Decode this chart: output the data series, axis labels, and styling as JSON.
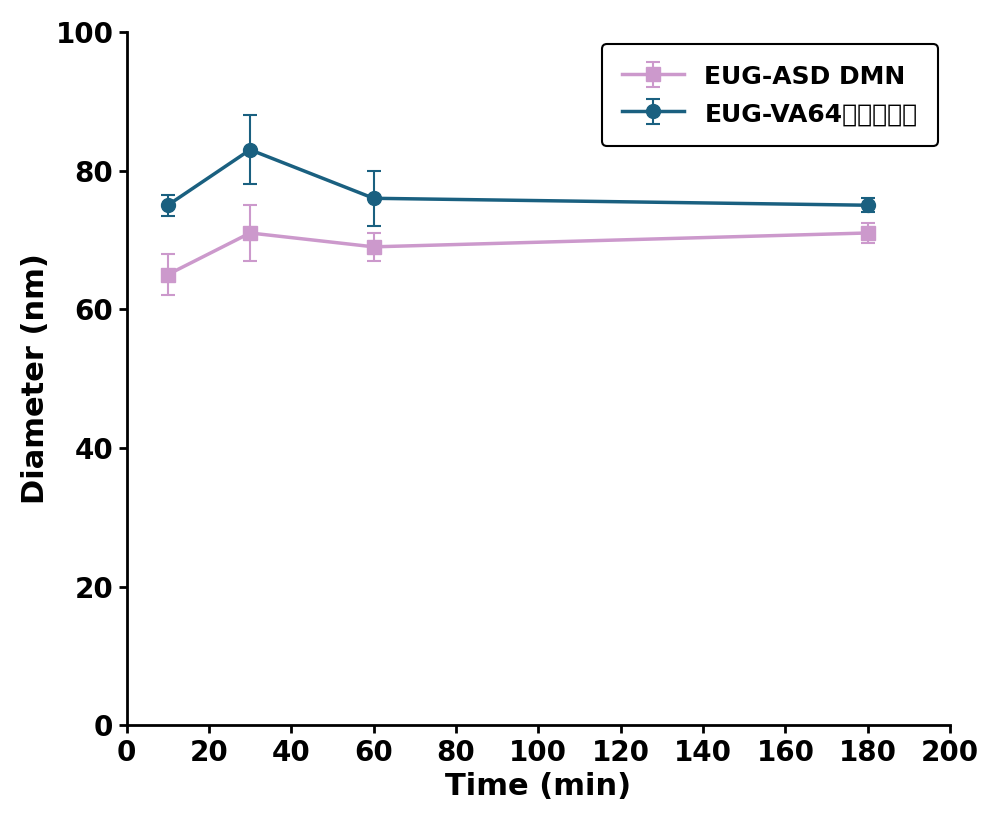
{
  "x": [
    10,
    30,
    60,
    180
  ],
  "series1_y": [
    65,
    71,
    69,
    71
  ],
  "series1_yerr": [
    3,
    4,
    2,
    1.5
  ],
  "series1_label": "EUG-ASD DMN",
  "series1_color": "#cc99cc",
  "series1_marker": "s",
  "series2_y": [
    75,
    83,
    76,
    75
  ],
  "series2_yerr": [
    1.5,
    5,
    4,
    1
  ],
  "series2_label": "EUG-VA64固体分散体",
  "series2_color": "#1a6080",
  "series2_marker": "o",
  "xlabel": "Time (min)",
  "ylabel": "Diameter (nm)",
  "xlim": [
    0,
    200
  ],
  "ylim": [
    0,
    100
  ],
  "xticks": [
    0,
    20,
    40,
    60,
    80,
    100,
    120,
    140,
    160,
    180,
    200
  ],
  "yticks": [
    0,
    20,
    40,
    60,
    80,
    100
  ],
  "label_fontsize": 22,
  "tick_fontsize": 20,
  "legend_fontsize": 18,
  "linewidth": 2.5,
  "markersize": 10,
  "capsize": 5
}
